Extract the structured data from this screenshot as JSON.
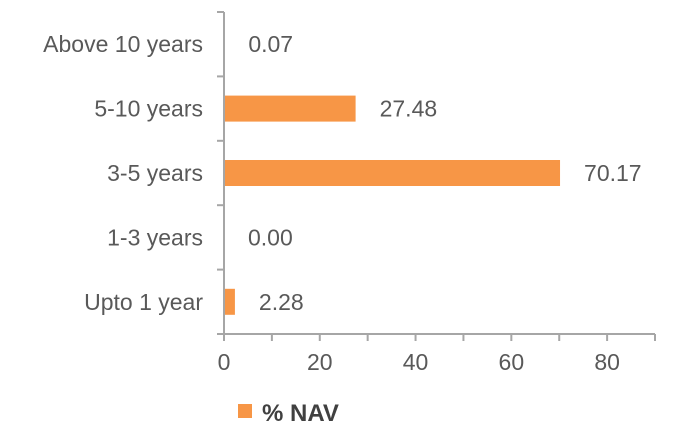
{
  "chart_data": {
    "type": "bar",
    "orientation": "horizontal",
    "categories": [
      "Above 10 years",
      "5-10 years",
      "3-5 years",
      "1-3 years",
      "Upto 1 year"
    ],
    "series": [
      {
        "name": "% NAV",
        "values": [
          0.07,
          27.48,
          70.17,
          0.0,
          2.28
        ],
        "color": "#f79646"
      }
    ],
    "data_labels": [
      "0.07",
      "27.48",
      "70.17",
      "0.00",
      "2.28"
    ],
    "xlim": [
      0,
      90
    ],
    "x_ticks": [
      0,
      20,
      40,
      60,
      80
    ],
    "grid": false,
    "legend_position": "bottom"
  },
  "colors": {
    "bar": "#f79646",
    "axis": "#a6a6a6",
    "text": "#595959"
  }
}
